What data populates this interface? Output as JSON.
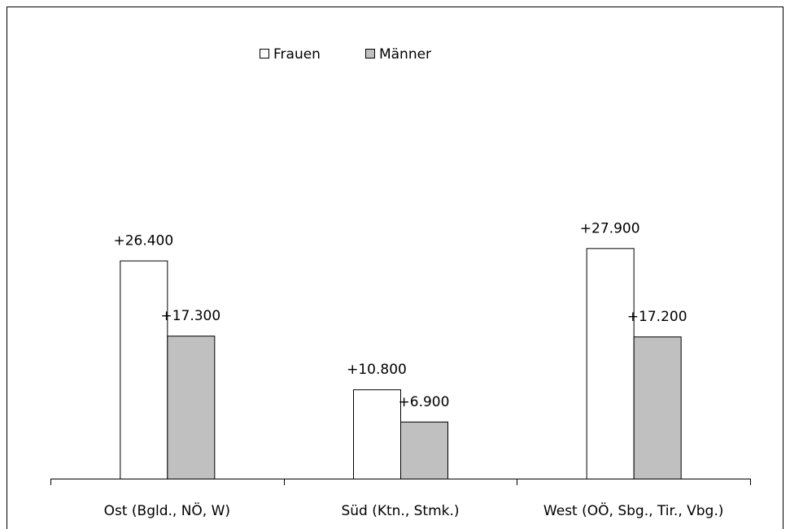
{
  "chart_data": {
    "type": "bar",
    "categories": [
      "Ost (Bgld., NÖ, W)",
      "Süd (Ktn., Stmk.)",
      "West (OÖ, Sbg., Tir., Vbg.)"
    ],
    "series": [
      {
        "name": "Frauen",
        "color": "#ffffff",
        "values": [
          26400,
          10800,
          27900
        ],
        "value_labels": [
          "+26.400",
          "+10.800",
          "+27.900"
        ]
      },
      {
        "name": "Männer",
        "color": "#c0c0c0",
        "values": [
          17300,
          6900,
          17200
        ],
        "value_labels": [
          "+17.300",
          "+6.900",
          "+17.200"
        ]
      }
    ],
    "ylim": [
      0,
      30000
    ],
    "legend": "top"
  }
}
